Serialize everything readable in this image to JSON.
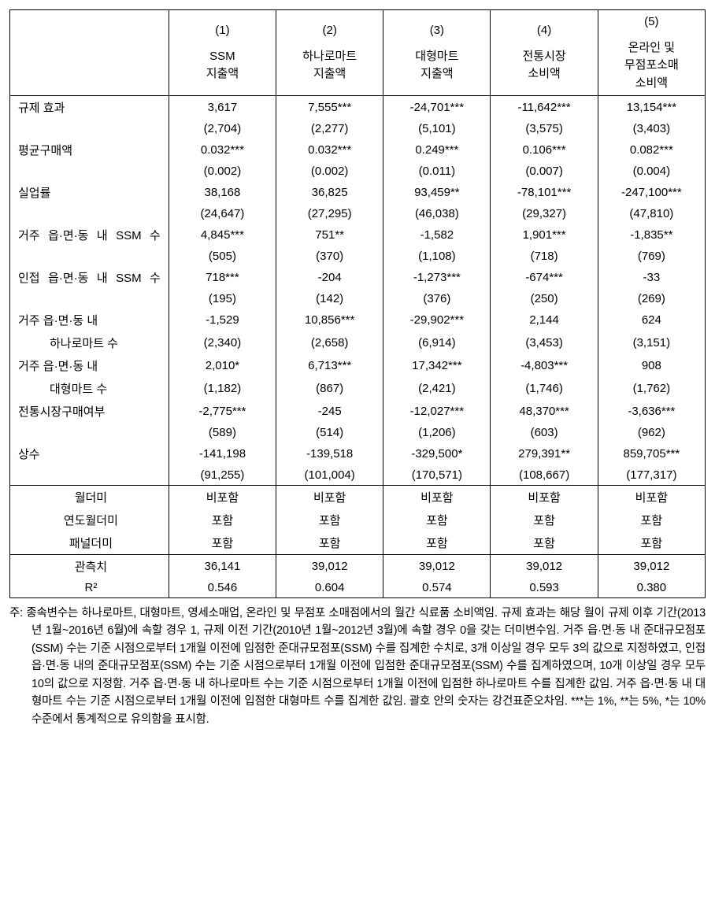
{
  "header": {
    "c1": {
      "num": "(1)",
      "label": "SSM<br>지출액"
    },
    "c2": {
      "num": "(2)",
      "label": "하나로마트<br>지출액"
    },
    "c3": {
      "num": "(3)",
      "label": "대형마트<br>지출액"
    },
    "c4": {
      "num": "(4)",
      "label": "전통시장<br>소비액"
    },
    "c5": {
      "num": "(5)",
      "label": "온라인 및<br>무점포소매<br>소비액"
    }
  },
  "rows": {
    "r1": {
      "label": "규제 효과",
      "v1": "3,617",
      "s1": "(2,704)",
      "v2": "7,555***",
      "s2": "(2,277)",
      "v3": "-24,701***",
      "s3": "(5,101)",
      "v4": "-11,642***",
      "s4": "(3,575)",
      "v5": "13,154***",
      "s5": "(3,403)"
    },
    "r2": {
      "label": "평균구매액",
      "v1": "0.032***",
      "s1": "(0.002)",
      "v2": "0.032***",
      "s2": "(0.002)",
      "v3": "0.249***",
      "s3": "(0.011)",
      "v4": "0.106***",
      "s4": "(0.007)",
      "v5": "0.082***",
      "s5": "(0.004)"
    },
    "r3": {
      "label": "실업률",
      "v1": "38,168",
      "s1": "(24,647)",
      "v2": "36,825",
      "s2": "(27,295)",
      "v3": "93,459**",
      "s3": "(46,038)",
      "v4": "-78,101***",
      "s4": "(29,327)",
      "v5": "-247,100***",
      "s5": "(47,810)"
    },
    "r4": {
      "label": "거주 읍·면·동 내 SSM 수",
      "v1": "4,845***",
      "s1": "(505)",
      "v2": "751**",
      "s2": "(370)",
      "v3": "-1,582",
      "s3": "(1,108)",
      "v4": "1,901***",
      "s4": "(718)",
      "v5": "-1,835**",
      "s5": "(769)"
    },
    "r5": {
      "label": "인접 읍·면·동 내 SSM 수",
      "v1": "718***",
      "s1": "(195)",
      "v2": "-204",
      "s2": "(142)",
      "v3": "-1,273***",
      "s3": "(376)",
      "v4": "-674***",
      "s4": "(250)",
      "v5": "-33",
      "s5": "(269)"
    },
    "r6": {
      "label1": "거주 읍·면·동 내",
      "label2": "하나로마트 수",
      "v1": "-1,529",
      "s1": "(2,340)",
      "v2": "10,856***",
      "s2": "(2,658)",
      "v3": "-29,902***",
      "s3": "(6,914)",
      "v4": "2,144",
      "s4": "(3,453)",
      "v5": "624",
      "s5": "(3,151)"
    },
    "r7": {
      "label1": "거주 읍·면·동 내",
      "label2": "대형마트 수",
      "v1": "2,010*",
      "s1": "(1,182)",
      "v2": "6,713***",
      "s2": "(867)",
      "v3": "17,342***",
      "s3": "(2,421)",
      "v4": "-4,803***",
      "s4": "(1,746)",
      "v5": "908",
      "s5": "(1,762)"
    },
    "r8": {
      "label": "전통시장구매여부",
      "v1": "-2,775***",
      "s1": "(589)",
      "v2": "-245",
      "s2": "(514)",
      "v3": "-12,027***",
      "s3": "(1,206)",
      "v4": "48,370***",
      "s4": "(603)",
      "v5": "-3,636***",
      "s5": "(962)"
    },
    "r9": {
      "label": "상수",
      "v1": "-141,198",
      "s1": "(91,255)",
      "v2": "-139,518",
      "s2": "(101,004)",
      "v3": "-329,500*",
      "s3": "(170,571)",
      "v4": "279,391**",
      "s4": "(108,667)",
      "v5": "859,705***",
      "s5": "(177,317)"
    }
  },
  "dummies": {
    "d1": {
      "label": "월더미",
      "v1": "비포함",
      "v2": "비포함",
      "v3": "비포함",
      "v4": "비포함",
      "v5": "비포함"
    },
    "d2": {
      "label": "연도월더미",
      "v1": "포함",
      "v2": "포함",
      "v3": "포함",
      "v4": "포함",
      "v5": "포함"
    },
    "d3": {
      "label": "패널더미",
      "v1": "포함",
      "v2": "포함",
      "v3": "포함",
      "v4": "포함",
      "v5": "포함"
    }
  },
  "stats": {
    "s1": {
      "label": "관측치",
      "v1": "36,141",
      "v2": "39,012",
      "v3": "39,012",
      "v4": "39,012",
      "v5": "39,012"
    },
    "s2": {
      "label": "R²",
      "v1": "0.546",
      "v2": "0.604",
      "v3": "0.574",
      "v4": "0.593",
      "v5": "0.380"
    }
  },
  "footnote": "주: 종속변수는 하나로마트, 대형마트, 영세소매업, 온라인 및 무점포 소매점에서의 월간 식료품 소비액임. 규제 효과는 해당 월이 규제 이후 기간(2013년 1월~2016년 6월)에 속할 경우 1, 규제 이전 기간(2010년 1월~2012년 3월)에 속할 경우 0을 갖는 더미변수임. 거주 읍·면·동 내 준대규모점포(SSM) 수는 기준 시점으로부터 1개월 이전에 입점한 준대규모점포(SSM) 수를 집계한 수치로, 3개 이상일 경우 모두 3의 값으로 지정하였고, 인접 읍·면·동 내의 준대규모점포(SSM) 수는 기준 시점으로부터 1개월 이전에 입점한 준대규모점포(SSM) 수를 집계하였으며, 10개 이상일 경우 모두 10의 값으로 지정함. 거주 읍·면·동 내 하나로마트 수는 기준 시점으로부터 1개월 이전에 입점한 하나로마트 수를 집계한 값임. 거주 읍·면·동 내 대형마트 수는 기준 시점으로부터 1개월 이전에 입점한 대형마트 수를 집계한 값임. 괄호 안의 숫자는 강건표준오차임. ***는 1%, **는 5%, *는 10% 수준에서 통계적으로 유의함을 표시함."
}
